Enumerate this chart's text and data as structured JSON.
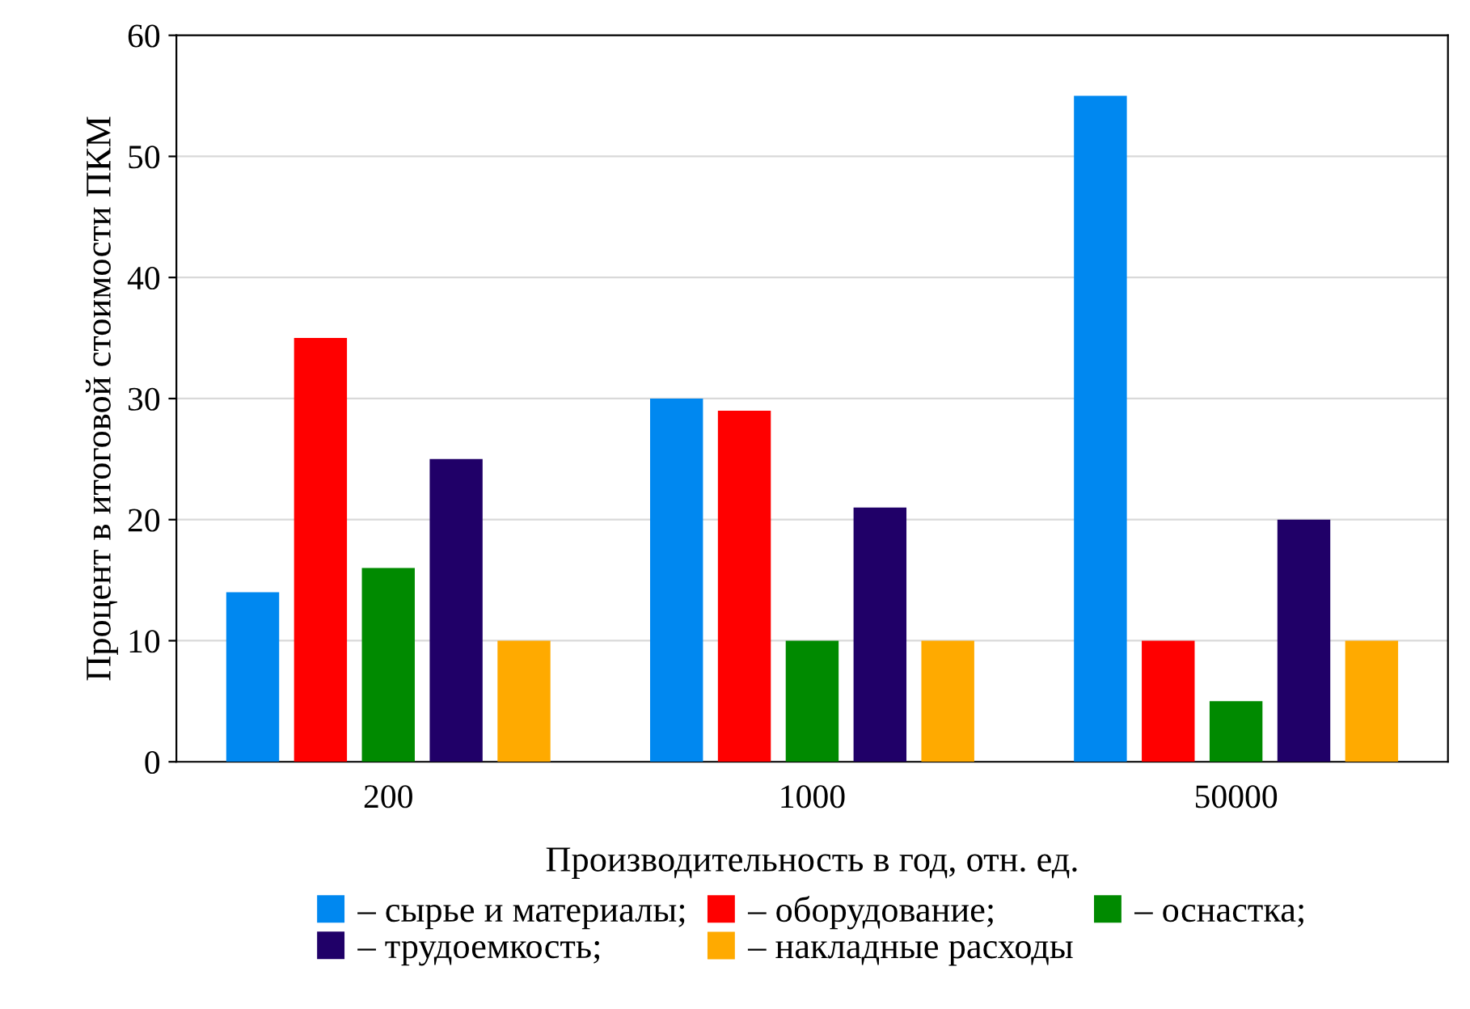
{
  "chart_data": {
    "type": "bar",
    "xlabel": "Производительность в год, отн. ед.",
    "ylabel": "Процент в итоговой стоимости ПКМ",
    "categories": [
      "200",
      "1000",
      "50000"
    ],
    "series": [
      {
        "name": "– сырье и материалы;",
        "color": "#0088f0",
        "values": [
          14,
          30,
          55
        ]
      },
      {
        "name": "– оборудование;",
        "color": "#ff0000",
        "values": [
          35,
          29,
          10
        ]
      },
      {
        "name": "– оснастка;",
        "color": "#008a00",
        "values": [
          16,
          10,
          5
        ]
      },
      {
        "name": "– трудоемкость;",
        "color": "#200068",
        "values": [
          25,
          21,
          20
        ]
      },
      {
        "name": "– накладные расходы",
        "color": "#ffaa00",
        "values": [
          10,
          10,
          10
        ]
      }
    ],
    "ylim": [
      0,
      60
    ],
    "yticks": [
      0,
      10,
      20,
      30,
      40,
      50,
      60
    ],
    "grid": "y",
    "legend": "bottom"
  }
}
